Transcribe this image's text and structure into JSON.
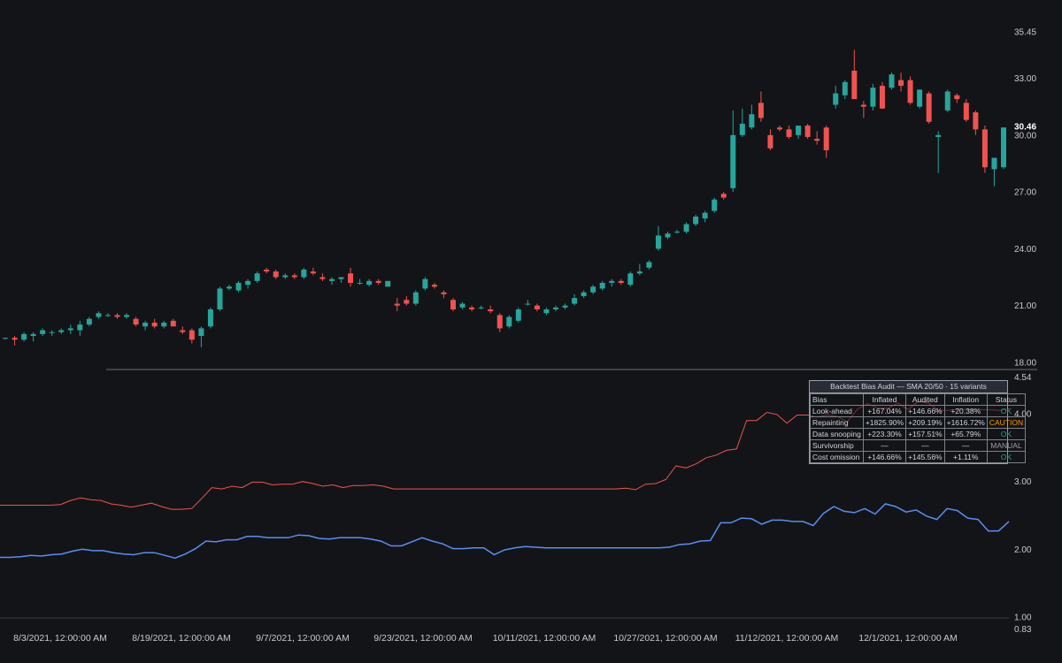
{
  "chart_data": [
    {
      "type": "candlestick",
      "price_axis": {
        "ticks": [
          "35.45",
          "33.00",
          "30.00",
          "27.00",
          "24.00",
          "21.00",
          "18.00"
        ],
        "last_price": "30.46"
      },
      "x_axis": {
        "tick_labels": [
          "8/3/2021, 12:00:00 AM",
          "8/19/2021, 12:00:00 AM",
          "9/7/2021, 12:00:00 AM",
          "9/23/2021, 12:00:00 AM",
          "10/11/2021, 12:00:00 AM",
          "10/27/2021, 12:00:00 AM",
          "11/12/2021, 12:00:00 AM",
          "12/1/2021, 12:00:00 AM"
        ]
      },
      "colors": {
        "up": "#26a69a",
        "down": "#ef5350"
      },
      "candles": [
        [
          19.3,
          19.3,
          19.2,
          19.3
        ],
        [
          19.3,
          19.4,
          18.9,
          19.2
        ],
        [
          19.2,
          19.6,
          19.1,
          19.5
        ],
        [
          19.4,
          19.6,
          19.1,
          19.5
        ],
        [
          19.5,
          19.8,
          19.4,
          19.7
        ],
        [
          19.6,
          19.7,
          19.4,
          19.6
        ],
        [
          19.6,
          19.8,
          19.5,
          19.7
        ],
        [
          19.7,
          20.0,
          19.5,
          19.8
        ],
        [
          19.7,
          20.2,
          19.4,
          20.0
        ],
        [
          20.0,
          20.4,
          19.9,
          20.3
        ],
        [
          20.4,
          20.7,
          20.3,
          20.6
        ],
        [
          20.5,
          20.6,
          20.4,
          20.5
        ],
        [
          20.5,
          20.6,
          20.3,
          20.4
        ],
        [
          20.4,
          20.6,
          20.3,
          20.5
        ],
        [
          20.3,
          20.4,
          19.9,
          20.0
        ],
        [
          19.9,
          20.2,
          19.7,
          20.1
        ],
        [
          20.1,
          20.3,
          19.8,
          19.9
        ],
        [
          19.9,
          20.2,
          19.8,
          20.1
        ],
        [
          20.2,
          20.3,
          19.9,
          19.9
        ],
        [
          19.7,
          19.9,
          19.5,
          19.6
        ],
        [
          19.7,
          19.8,
          19.0,
          19.2
        ],
        [
          19.4,
          19.9,
          18.8,
          19.8
        ],
        [
          19.9,
          20.9,
          19.8,
          20.8
        ],
        [
          20.8,
          22.0,
          20.7,
          21.9
        ],
        [
          21.9,
          22.1,
          21.8,
          22.0
        ],
        [
          21.8,
          22.3,
          21.7,
          22.2
        ],
        [
          22.1,
          22.4,
          21.9,
          22.3
        ],
        [
          22.3,
          22.8,
          22.2,
          22.7
        ],
        [
          22.9,
          23.0,
          22.7,
          22.8
        ],
        [
          22.8,
          22.9,
          22.4,
          22.5
        ],
        [
          22.5,
          22.7,
          22.4,
          22.6
        ],
        [
          22.6,
          22.7,
          22.4,
          22.5
        ],
        [
          22.5,
          23.0,
          22.4,
          22.9
        ],
        [
          22.8,
          23.0,
          22.6,
          22.7
        ],
        [
          22.5,
          22.7,
          22.3,
          22.4
        ],
        [
          22.3,
          22.5,
          22.1,
          22.4
        ],
        [
          22.4,
          22.5,
          22.2,
          22.5
        ],
        [
          22.7,
          23.0,
          22.0,
          22.2
        ],
        [
          22.2,
          22.4,
          22.1,
          22.2
        ],
        [
          22.1,
          22.4,
          22.0,
          22.3
        ],
        [
          22.3,
          22.4,
          22.1,
          22.2
        ],
        [
          22.0,
          22.3,
          22.0,
          22.3
        ],
        [
          21.1,
          21.4,
          20.7,
          21.0
        ],
        [
          21.3,
          21.5,
          21.0,
          21.1
        ],
        [
          21.1,
          21.8,
          21.0,
          21.7
        ],
        [
          21.9,
          22.5,
          21.8,
          22.4
        ],
        [
          22.1,
          22.2,
          21.9,
          22.0
        ],
        [
          21.7,
          21.8,
          21.4,
          21.6
        ],
        [
          21.3,
          21.4,
          20.7,
          20.8
        ],
        [
          20.9,
          21.2,
          20.8,
          21.1
        ],
        [
          20.9,
          21.0,
          20.7,
          20.8
        ],
        [
          20.9,
          21.0,
          20.8,
          20.9
        ],
        [
          20.8,
          21.0,
          20.6,
          20.7
        ],
        [
          20.5,
          20.6,
          19.6,
          19.8
        ],
        [
          19.9,
          20.5,
          19.8,
          20.4
        ],
        [
          20.2,
          20.9,
          20.1,
          20.8
        ],
        [
          21.1,
          21.3,
          21.0,
          21.1
        ],
        [
          21.0,
          21.1,
          20.7,
          20.8
        ],
        [
          20.6,
          20.9,
          20.5,
          20.8
        ],
        [
          20.8,
          21.0,
          20.7,
          20.9
        ],
        [
          20.9,
          21.1,
          20.8,
          21.0
        ],
        [
          21.1,
          21.6,
          21.0,
          21.4
        ],
        [
          21.5,
          21.8,
          21.4,
          21.7
        ],
        [
          21.7,
          22.1,
          21.6,
          22.0
        ],
        [
          21.9,
          22.3,
          21.8,
          22.2
        ],
        [
          22.2,
          22.4,
          22.0,
          22.3
        ],
        [
          22.3,
          22.4,
          22.1,
          22.2
        ],
        [
          22.1,
          22.8,
          22.0,
          22.7
        ],
        [
          22.7,
          23.2,
          22.6,
          22.8
        ],
        [
          23.0,
          23.4,
          22.9,
          23.3
        ],
        [
          24.0,
          25.2,
          23.9,
          24.7
        ],
        [
          24.6,
          24.9,
          24.5,
          24.8
        ],
        [
          24.9,
          25.0,
          24.8,
          24.9
        ],
        [
          24.9,
          25.4,
          24.8,
          25.3
        ],
        [
          25.3,
          25.8,
          25.2,
          25.7
        ],
        [
          25.6,
          26.0,
          25.4,
          25.9
        ],
        [
          26.0,
          26.7,
          25.9,
          26.6
        ],
        [
          26.9,
          27.0,
          26.6,
          26.7
        ],
        [
          27.2,
          31.3,
          27.0,
          30.0
        ],
        [
          30.0,
          31.4,
          29.9,
          30.6
        ],
        [
          30.4,
          31.6,
          30.3,
          31.1
        ],
        [
          31.7,
          32.3,
          30.7,
          30.9
        ],
        [
          30.0,
          30.3,
          29.2,
          29.3
        ],
        [
          30.4,
          30.5,
          30.2,
          30.3
        ],
        [
          30.3,
          30.5,
          29.8,
          29.9
        ],
        [
          30.0,
          30.5,
          29.8,
          30.5
        ],
        [
          30.5,
          30.6,
          29.8,
          29.9
        ],
        [
          29.8,
          30.2,
          29.5,
          29.7
        ],
        [
          30.4,
          30.5,
          28.8,
          29.2
        ],
        [
          31.6,
          32.6,
          31.4,
          32.2
        ],
        [
          32.1,
          32.9,
          31.9,
          32.8
        ],
        [
          33.4,
          34.5,
          31.9,
          31.9
        ],
        [
          31.6,
          31.8,
          30.9,
          31.5
        ],
        [
          31.5,
          32.7,
          31.3,
          32.5
        ],
        [
          32.6,
          32.8,
          31.4,
          31.4
        ],
        [
          32.5,
          33.3,
          32.4,
          33.2
        ],
        [
          32.9,
          33.3,
          32.3,
          32.6
        ],
        [
          32.9,
          33.1,
          31.6,
          31.7
        ],
        [
          31.5,
          32.4,
          31.4,
          32.4
        ],
        [
          32.2,
          32.3,
          30.6,
          30.7
        ],
        [
          29.9,
          30.2,
          28.0,
          30.0
        ],
        [
          31.3,
          32.4,
          31.2,
          32.3
        ],
        [
          32.1,
          32.2,
          31.7,
          31.9
        ],
        [
          31.7,
          31.9,
          30.7,
          30.8
        ],
        [
          31.2,
          31.3,
          30.0,
          30.3
        ],
        [
          30.3,
          30.5,
          28.0,
          28.3
        ],
        [
          28.2,
          28.8,
          27.3,
          28.8
        ],
        [
          28.3,
          30.4,
          28.2,
          30.4
        ]
      ]
    },
    {
      "type": "line",
      "value_axis": {
        "ticks": [
          "4.54",
          "4.00",
          "3.00",
          "2.00",
          "1.00",
          "0.83"
        ]
      },
      "series": [
        {
          "color": "#ef5350",
          "values": [
            2.65,
            2.65,
            2.65,
            2.65,
            2.65,
            2.65,
            2.66,
            2.72,
            2.76,
            2.73,
            2.72,
            2.67,
            2.65,
            2.62,
            2.65,
            2.68,
            2.63,
            2.59,
            2.59,
            2.6,
            2.75,
            2.91,
            2.89,
            2.93,
            2.91,
            2.99,
            2.99,
            2.95,
            2.96,
            2.96,
            3.0,
            2.97,
            2.93,
            2.95,
            2.91,
            2.94,
            2.94,
            2.95,
            2.93,
            2.89,
            2.89,
            2.89,
            2.89,
            2.89,
            2.89,
            2.89,
            2.89,
            2.89,
            2.89,
            2.89,
            2.89,
            2.89,
            2.89,
            2.89,
            2.89,
            2.89,
            2.89,
            2.89,
            2.89,
            2.89,
            2.89,
            2.89,
            2.9,
            2.88,
            2.96,
            2.97,
            3.03,
            3.23,
            3.2,
            3.26,
            3.35,
            3.39,
            3.46,
            3.48,
            3.9,
            3.9,
            4.02,
            3.99,
            3.86,
            3.98,
            3.98,
            3.95,
            3.98,
            3.96,
            3.88,
            4.07,
            4.15,
            4.08,
            4.08,
            4.16,
            4.06,
            4.18,
            4.16,
            4.05,
            4.05,
            4.07,
            4.06,
            4.06,
            4.06,
            4.05,
            4.07
          ]
        },
        {
          "color": "#5b8def",
          "values": [
            1.88,
            1.88,
            1.89,
            1.91,
            1.9,
            1.92,
            1.93,
            1.97,
            2.0,
            1.98,
            1.98,
            1.95,
            1.93,
            1.92,
            1.95,
            1.95,
            1.91,
            1.87,
            1.93,
            2.01,
            2.12,
            2.11,
            2.14,
            2.14,
            2.19,
            2.19,
            2.17,
            2.17,
            2.17,
            2.21,
            2.2,
            2.16,
            2.15,
            2.17,
            2.17,
            2.17,
            2.15,
            2.12,
            2.05,
            2.05,
            2.11,
            2.17,
            2.12,
            2.08,
            2.01,
            2.01,
            2.02,
            2.02,
            1.92,
            1.99,
            2.02,
            2.04,
            2.03,
            2.02,
            2.02,
            2.02,
            2.02,
            2.02,
            2.02,
            2.02,
            2.02,
            2.02,
            2.02,
            2.02,
            2.02,
            2.03,
            2.07,
            2.08,
            2.12,
            2.13,
            2.39,
            2.39,
            2.46,
            2.45,
            2.37,
            2.43,
            2.43,
            2.41,
            2.41,
            2.35,
            2.53,
            2.63,
            2.56,
            2.54,
            2.6,
            2.52,
            2.67,
            2.63,
            2.55,
            2.58,
            2.49,
            2.44,
            2.6,
            2.57,
            2.46,
            2.44,
            2.27,
            2.27,
            2.41
          ]
        }
      ]
    }
  ],
  "audit_table": {
    "title": "Backtest Bias Audit — SMA 20/50 · 15 variants",
    "headers": [
      "Bias",
      "Inflated",
      "Audited",
      "Inflation",
      "Status"
    ],
    "rows": [
      {
        "bias": "Look-ahead",
        "inflated": "+167.04%",
        "audited": "+146.66%",
        "inflation": "+20.38%",
        "status": "OK",
        "status_color": "#26a69a"
      },
      {
        "bias": "Repainting",
        "inflated": "+1825.90%",
        "audited": "+209.19%",
        "inflation": "+1616.72%",
        "status": "CAUTION",
        "status_color": "#ff9800"
      },
      {
        "bias": "Data snooping",
        "inflated": "+223.30%",
        "audited": "+157.51%",
        "inflation": "+65.79%",
        "status": "OK",
        "status_color": "#26a69a"
      },
      {
        "bias": "Survivorship",
        "inflated": "—",
        "audited": "—",
        "inflation": "—",
        "status": "MANUAL",
        "status_color": "#9aa0aa"
      },
      {
        "bias": "Cost omission",
        "inflated": "+146.66%",
        "audited": "+145.56%",
        "inflation": "+1.11%",
        "status": "OK",
        "status_color": "#26a69a"
      }
    ]
  }
}
